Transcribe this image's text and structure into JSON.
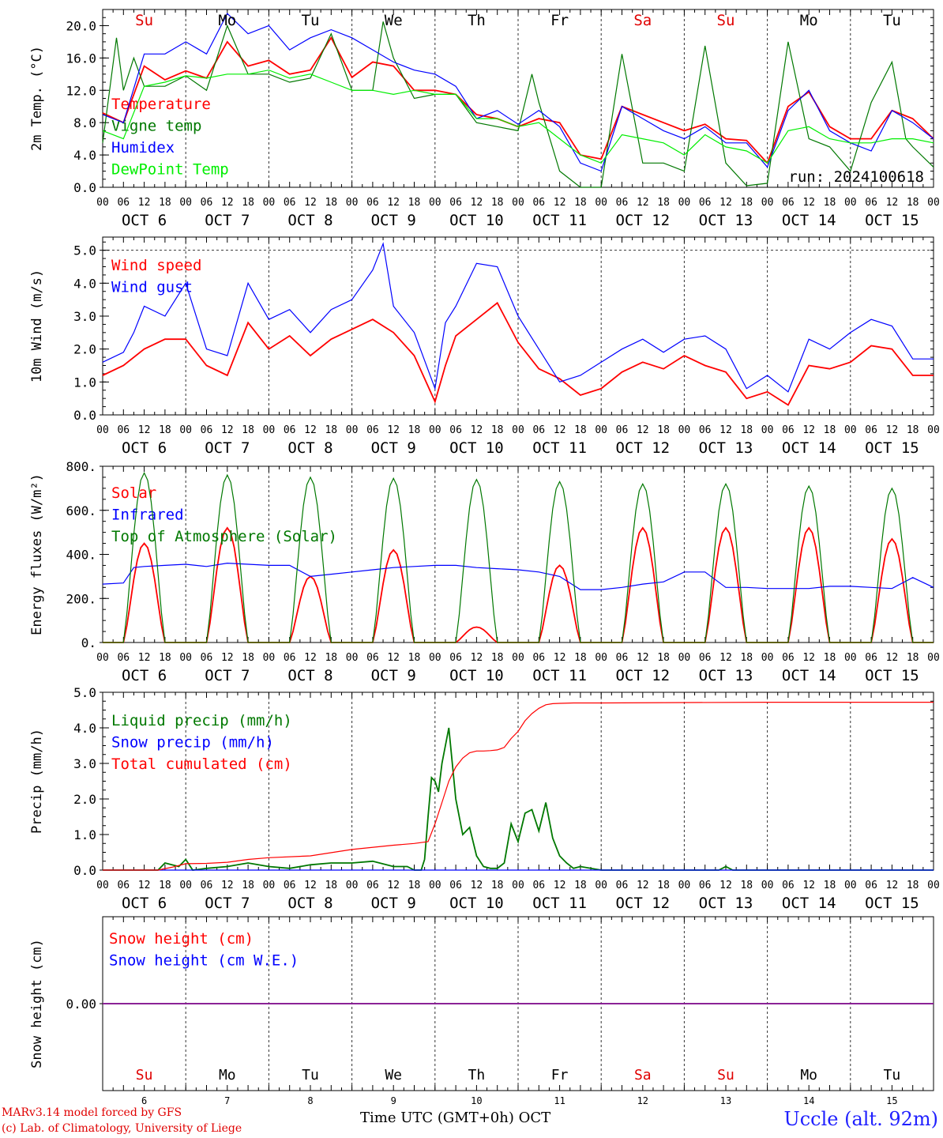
{
  "chart_data": [
    {
      "type": "line",
      "ylabel": "2m Temp. (°C)",
      "ylim": [
        0,
        22
      ],
      "yticks": [
        "0.0",
        "4.0",
        "8.0",
        "12.0",
        "16.0",
        "20.0"
      ],
      "x_unit": "hours since OCT 6 00 UTC",
      "day_labels": [
        {
          "text": "Su",
          "color": "#e00000"
        },
        {
          "text": "Mo",
          "color": "#000000"
        },
        {
          "text": "Tu",
          "color": "#000000"
        },
        {
          "text": "We",
          "color": "#000000"
        },
        {
          "text": "Th",
          "color": "#000000"
        },
        {
          "text": "Fr",
          "color": "#000000"
        },
        {
          "text": "Sa",
          "color": "#e00000"
        },
        {
          "text": "Su",
          "color": "#e00000"
        },
        {
          "text": "Mo",
          "color": "#000000"
        },
        {
          "text": "Tu",
          "color": "#000000"
        }
      ],
      "run_label": "run: 2024100618",
      "series": [
        {
          "name": "Temperature",
          "color": "#ff0000",
          "x": [
            0,
            6,
            12,
            18,
            24,
            30,
            36,
            42,
            48,
            54,
            60,
            66,
            72,
            78,
            84,
            90,
            96,
            102,
            108,
            114,
            120,
            126,
            132,
            138,
            144,
            150,
            156,
            162,
            168,
            174,
            180,
            186,
            192,
            198,
            204,
            210,
            216,
            222,
            228,
            234,
            240
          ],
          "y": [
            9.2,
            8.0,
            15.0,
            13.3,
            14.4,
            13.5,
            18.0,
            15.0,
            15.7,
            14.0,
            14.5,
            18.5,
            13.6,
            15.5,
            15.0,
            12.0,
            12.0,
            11.5,
            9.0,
            8.5,
            7.5,
            8.5,
            8.0,
            4.0,
            3.5,
            10.0,
            9.0,
            8.0,
            7.0,
            7.8,
            6.0,
            5.8,
            3.0,
            10.0,
            11.8,
            7.5,
            6.0,
            6.0,
            9.5,
            8.5,
            6.0
          ]
        },
        {
          "name": "Vigne temp",
          "color": "#007800",
          "x": [
            0,
            4,
            6,
            9,
            12,
            18,
            24,
            30,
            36,
            42,
            48,
            54,
            60,
            66,
            72,
            78,
            81,
            84,
            90,
            96,
            102,
            108,
            114,
            120,
            124,
            126,
            132,
            138,
            144,
            150,
            156,
            162,
            168,
            174,
            180,
            186,
            192,
            198,
            204,
            210,
            216,
            222,
            228,
            232,
            234,
            240
          ],
          "y": [
            5.5,
            18.5,
            12.0,
            16.0,
            12.5,
            12.5,
            13.8,
            12.0,
            20.0,
            14.0,
            14.0,
            13.0,
            13.5,
            19.0,
            12.0,
            12.0,
            20.5,
            16.0,
            11.0,
            11.5,
            11.5,
            8.0,
            7.5,
            7.0,
            14.0,
            10.5,
            2.0,
            0.0,
            0.0,
            16.5,
            3.0,
            3.0,
            2.0,
            17.5,
            3.0,
            0.2,
            0.5,
            18.0,
            6.0,
            5.0,
            2.0,
            10.5,
            15.5,
            6.0,
            5.0,
            2.5
          ]
        },
        {
          "name": "Humidex",
          "color": "#0000ff",
          "x": [
            0,
            6,
            12,
            18,
            24,
            30,
            36,
            42,
            48,
            54,
            60,
            66,
            72,
            78,
            84,
            90,
            96,
            102,
            108,
            114,
            120,
            126,
            132,
            138,
            144,
            150,
            156,
            162,
            168,
            174,
            180,
            186,
            192,
            198,
            204,
            210,
            216,
            222,
            228,
            234,
            240
          ],
          "y": [
            9.0,
            8.0,
            16.5,
            16.5,
            18.0,
            16.5,
            21.5,
            19.0,
            20.0,
            17.0,
            18.5,
            19.5,
            18.5,
            17.0,
            15.5,
            14.5,
            14.0,
            12.5,
            8.5,
            9.5,
            7.8,
            9.5,
            7.5,
            3.0,
            2.0,
            10.0,
            8.5,
            7.0,
            6.0,
            7.5,
            5.5,
            5.5,
            2.5,
            9.5,
            12.0,
            7.0,
            5.5,
            4.5,
            9.5,
            8.0,
            6.0
          ]
        },
        {
          "name": "DewPoint Temp",
          "color": "#00ee00",
          "x": [
            0,
            6,
            12,
            18,
            24,
            30,
            36,
            42,
            48,
            54,
            60,
            66,
            72,
            78,
            84,
            90,
            96,
            102,
            108,
            114,
            120,
            126,
            132,
            138,
            144,
            150,
            156,
            162,
            168,
            174,
            180,
            186,
            192,
            198,
            204,
            210,
            216,
            222,
            228,
            234,
            240
          ],
          "y": [
            7.0,
            6.0,
            12.5,
            13.0,
            13.8,
            13.5,
            14.0,
            14.0,
            14.5,
            13.5,
            14.0,
            13.0,
            12.0,
            12.0,
            11.5,
            12.0,
            11.5,
            11.5,
            8.5,
            8.5,
            7.5,
            8.0,
            6.0,
            4.0,
            3.0,
            6.5,
            6.0,
            5.5,
            4.0,
            6.5,
            5.0,
            4.5,
            3.0,
            7.0,
            7.5,
            6.0,
            5.5,
            5.5,
            6.0,
            6.0,
            5.5
          ]
        }
      ]
    },
    {
      "type": "line",
      "ylabel": "10m Wind (m/s)",
      "ylim": [
        0,
        5.4
      ],
      "yticks": [
        "0.0",
        "1.0",
        "2.0",
        "3.0",
        "4.0",
        "5.0"
      ],
      "reference_line": 5.0,
      "series": [
        {
          "name": "Wind speed",
          "color": "#ff0000",
          "x": [
            0,
            6,
            12,
            18,
            24,
            30,
            36,
            42,
            48,
            54,
            60,
            66,
            72,
            78,
            84,
            90,
            96,
            99,
            102,
            108,
            114,
            120,
            126,
            132,
            138,
            144,
            150,
            156,
            162,
            168,
            174,
            180,
            186,
            192,
            198,
            204,
            210,
            216,
            222,
            228,
            234,
            240
          ],
          "y": [
            1.2,
            1.5,
            2.0,
            2.3,
            2.3,
            1.5,
            1.2,
            2.8,
            2.0,
            2.4,
            1.8,
            2.3,
            2.6,
            2.9,
            2.5,
            1.8,
            0.4,
            1.5,
            2.4,
            2.9,
            3.4,
            2.2,
            1.4,
            1.1,
            0.6,
            0.8,
            1.3,
            1.6,
            1.4,
            1.8,
            1.5,
            1.3,
            0.5,
            0.7,
            0.3,
            1.5,
            1.4,
            1.6,
            2.1,
            2.0,
            1.2,
            1.2
          ]
        },
        {
          "name": "Wind gust",
          "color": "#0000ff",
          "x": [
            0,
            6,
            9,
            12,
            18,
            24,
            30,
            36,
            42,
            48,
            54,
            60,
            66,
            72,
            78,
            81,
            84,
            90,
            96,
            99,
            102,
            108,
            114,
            120,
            126,
            132,
            138,
            144,
            150,
            156,
            162,
            168,
            174,
            180,
            186,
            192,
            198,
            204,
            210,
            216,
            222,
            228,
            234,
            240
          ],
          "y": [
            1.6,
            1.9,
            2.5,
            3.3,
            3.0,
            4.0,
            2.0,
            1.8,
            4.0,
            2.9,
            3.2,
            2.5,
            3.2,
            3.5,
            4.4,
            5.2,
            3.3,
            2.5,
            0.8,
            2.8,
            3.3,
            4.6,
            4.5,
            3.0,
            2.0,
            1.0,
            1.2,
            1.6,
            2.0,
            2.3,
            1.9,
            2.3,
            2.4,
            2.0,
            0.8,
            1.2,
            0.7,
            2.3,
            2.0,
            2.5,
            2.9,
            2.7,
            1.7,
            1.7
          ]
        }
      ]
    },
    {
      "type": "line",
      "ylabel": "Energy fluxes (W/m²)",
      "ylim": [
        0,
        800
      ],
      "yticks": [
        "0.",
        "200.",
        "400.",
        "600.",
        "800."
      ],
      "series": [
        {
          "name": "Solar",
          "color": "#ff0000",
          "shape": "diurnal",
          "peaks": [
            450,
            520,
            300,
            420,
            70,
            350,
            520,
            520,
            520,
            470
          ]
        },
        {
          "name": "Infrared",
          "color": "#0000ff",
          "x": [
            0,
            6,
            9,
            12,
            18,
            24,
            30,
            36,
            42,
            48,
            54,
            60,
            66,
            72,
            78,
            84,
            90,
            96,
            102,
            108,
            114,
            120,
            126,
            132,
            138,
            144,
            150,
            156,
            162,
            168,
            174,
            180,
            186,
            192,
            198,
            204,
            210,
            216,
            222,
            228,
            234,
            240
          ],
          "y": [
            265,
            270,
            340,
            345,
            350,
            355,
            345,
            360,
            355,
            350,
            350,
            300,
            310,
            320,
            330,
            340,
            345,
            350,
            350,
            340,
            335,
            330,
            320,
            300,
            240,
            240,
            250,
            265,
            275,
            320,
            320,
            250,
            250,
            245,
            245,
            245,
            255,
            255,
            250,
            245,
            295,
            250
          ]
        },
        {
          "name": "Top of Atmosphere (Solar)",
          "color": "#007800",
          "shape": "diurnal",
          "peaks": [
            770,
            760,
            750,
            745,
            740,
            730,
            720,
            720,
            710,
            700
          ]
        }
      ]
    },
    {
      "type": "line",
      "ylabel": "Precip (mm/h)",
      "ylim": [
        0,
        5.0
      ],
      "yticks": [
        "0.0",
        "1.0",
        "2.0",
        "3.0",
        "4.0",
        "5.0"
      ],
      "series": [
        {
          "name": "Liquid precip (mm/h)",
          "color": "#007800",
          "x": [
            0,
            16,
            18,
            22,
            24,
            26,
            30,
            36,
            42,
            48,
            54,
            60,
            66,
            72,
            78,
            84,
            88,
            90,
            92,
            93,
            94,
            95,
            96,
            97,
            98,
            100,
            102,
            104,
            106,
            108,
            110,
            112,
            114,
            116,
            118,
            120,
            122,
            124,
            126,
            128,
            130,
            132,
            134,
            136,
            138,
            144,
            168,
            178,
            180,
            182,
            192,
            240
          ],
          "y": [
            0,
            0,
            0.2,
            0.1,
            0.3,
            0,
            0.05,
            0.1,
            0.2,
            0.1,
            0.05,
            0.15,
            0.2,
            0.2,
            0.25,
            0.1,
            0.1,
            0,
            0,
            0.3,
            1.5,
            2.6,
            2.5,
            2.2,
            3.0,
            4.0,
            2.0,
            1.0,
            1.2,
            0.4,
            0.1,
            0.05,
            0.05,
            0.2,
            1.3,
            0.8,
            1.6,
            1.7,
            1.1,
            1.9,
            0.9,
            0.4,
            0.2,
            0.05,
            0.1,
            0,
            0,
            0,
            0.1,
            0,
            0,
            0
          ]
        },
        {
          "name": "Snow precip (mm/h)",
          "color": "#0000ff",
          "x": [
            0,
            240
          ],
          "y": [
            0,
            0
          ]
        },
        {
          "name": "Total cumulated (cm)",
          "color": "#ff0000",
          "x": [
            0,
            16,
            20,
            24,
            30,
            36,
            42,
            48,
            60,
            72,
            84,
            90,
            94,
            96,
            98,
            100,
            102,
            104,
            106,
            108,
            110,
            112,
            114,
            116,
            118,
            120,
            122,
            124,
            126,
            128,
            130,
            132,
            136,
            144,
            168,
            192,
            216,
            240
          ],
          "y": [
            0,
            0,
            0.08,
            0.18,
            0.19,
            0.22,
            0.3,
            0.35,
            0.4,
            0.58,
            0.7,
            0.75,
            0.8,
            1.3,
            1.9,
            2.5,
            2.9,
            3.15,
            3.3,
            3.35,
            3.35,
            3.36,
            3.38,
            3.45,
            3.7,
            3.9,
            4.2,
            4.4,
            4.55,
            4.65,
            4.68,
            4.69,
            4.7,
            4.7,
            4.71,
            4.72,
            4.72,
            4.72
          ]
        }
      ]
    },
    {
      "type": "line",
      "ylabel": "Snow height (cm)",
      "yticks": [
        "0.00"
      ],
      "ylim": [
        -1,
        1
      ],
      "series": [
        {
          "name": "Snow height (cm)",
          "color": "#ff0000",
          "x": [
            0,
            240
          ],
          "y": [
            0,
            0
          ]
        },
        {
          "name": "Snow height (cm W.E.)",
          "color": "#0000ff",
          "x": [
            0,
            240
          ],
          "y": [
            0,
            0
          ]
        }
      ],
      "day_labels": [
        {
          "text": "Su",
          "color": "#e00000"
        },
        {
          "text": "Mo",
          "color": "#000000"
        },
        {
          "text": "Tu",
          "color": "#000000"
        },
        {
          "text": "We",
          "color": "#000000"
        },
        {
          "text": "Th",
          "color": "#000000"
        },
        {
          "text": "Fr",
          "color": "#000000"
        },
        {
          "text": "Sa",
          "color": "#e00000"
        },
        {
          "text": "Su",
          "color": "#e00000"
        },
        {
          "text": "Mo",
          "color": "#000000"
        },
        {
          "text": "Tu",
          "color": "#000000"
        }
      ],
      "day_numbers": [
        "6",
        "7",
        "8",
        "9",
        "10",
        "11",
        "12",
        "13",
        "14",
        "15"
      ]
    }
  ],
  "x_axis": {
    "hour_ticks": [
      "00",
      "06",
      "12",
      "18"
    ],
    "final_tick": "00",
    "date_labels": [
      "OCT  6",
      "OCT  7",
      "OCT  8",
      "OCT  9",
      "OCT 10",
      "OCT 11",
      "OCT 12",
      "OCT 13",
      "OCT 14",
      "OCT 15"
    ],
    "title": "Time UTC (GMT+0h)",
    "month": "OCT"
  },
  "footer": {
    "credit_line1": "MARv3.14 model forced by GFS",
    "credit_line2": "(c) Lab. of Climatology, University of Liege",
    "location": "Uccle (alt. 92m)"
  }
}
